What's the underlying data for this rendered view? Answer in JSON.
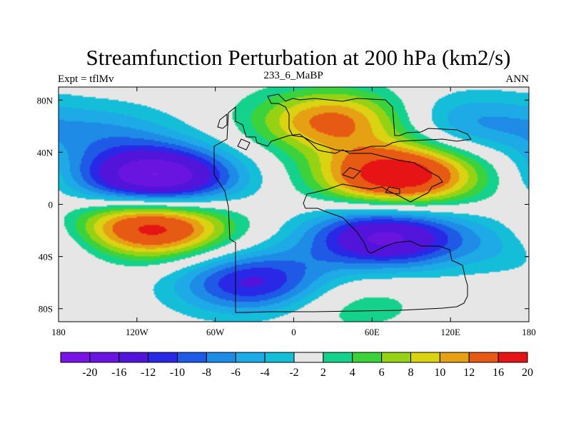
{
  "chart_data": {
    "type": "heatmap",
    "title": "Streamfunction Perturbation at 200 hPa (km2/s)",
    "left_string": "Expt = tflMv",
    "center_string": "233_6_MaBP",
    "right_string": "ANN",
    "x_axis": {
      "range": [
        -180,
        180
      ],
      "tick_values": [
        -180,
        -120,
        -60,
        0,
        60,
        120,
        180
      ],
      "tick_labels": [
        "180",
        "120W",
        "60W",
        "0",
        "60E",
        "120E",
        "180"
      ]
    },
    "y_axis": {
      "range": [
        -90,
        90
      ],
      "tick_values": [
        80,
        40,
        0,
        -40,
        -80
      ],
      "tick_labels": [
        "80N",
        "40N",
        "0",
        "40S",
        "80S"
      ]
    },
    "colorbar": {
      "labels": [
        "-20",
        "-16",
        "-12",
        "-10",
        "-8",
        "-6",
        "-4",
        "-2",
        "2",
        "4",
        "6",
        "8",
        "10",
        "12",
        "16",
        "20"
      ],
      "colors": [
        "#7a14e6",
        "#6a14e0",
        "#5214da",
        "#2828e6",
        "#1e5ae6",
        "#1e8ce6",
        "#1eaae6",
        "#14bed8",
        "#e6e6e6",
        "#14d28c",
        "#3cd23c",
        "#96d214",
        "#dcd214",
        "#e6a014",
        "#e65a14",
        "#e61414"
      ]
    },
    "anomaly_centers": [
      {
        "lon": -105,
        "lat": 20,
        "value": -21,
        "kind": "min"
      },
      {
        "lon": -110,
        "lat": -17,
        "value": 19,
        "kind": "max"
      },
      {
        "lon": 80,
        "lat": 22,
        "value": 20,
        "kind": "max"
      },
      {
        "lon": 30,
        "lat": 64,
        "value": 13,
        "kind": "max"
      },
      {
        "lon": 70,
        "lat": -25,
        "value": -17,
        "kind": "min"
      },
      {
        "lon": -30,
        "lat": -60,
        "value": -13,
        "kind": "min"
      },
      {
        "lon": 130,
        "lat": 63,
        "value": -6,
        "kind": "min"
      },
      {
        "lon": -145,
        "lat": 55,
        "value": -5,
        "kind": "min"
      },
      {
        "lon": 175,
        "lat": -30,
        "value": -4,
        "kind": "min"
      },
      {
        "lon": 40,
        "lat": -75,
        "value": 4,
        "kind": "max"
      }
    ]
  }
}
